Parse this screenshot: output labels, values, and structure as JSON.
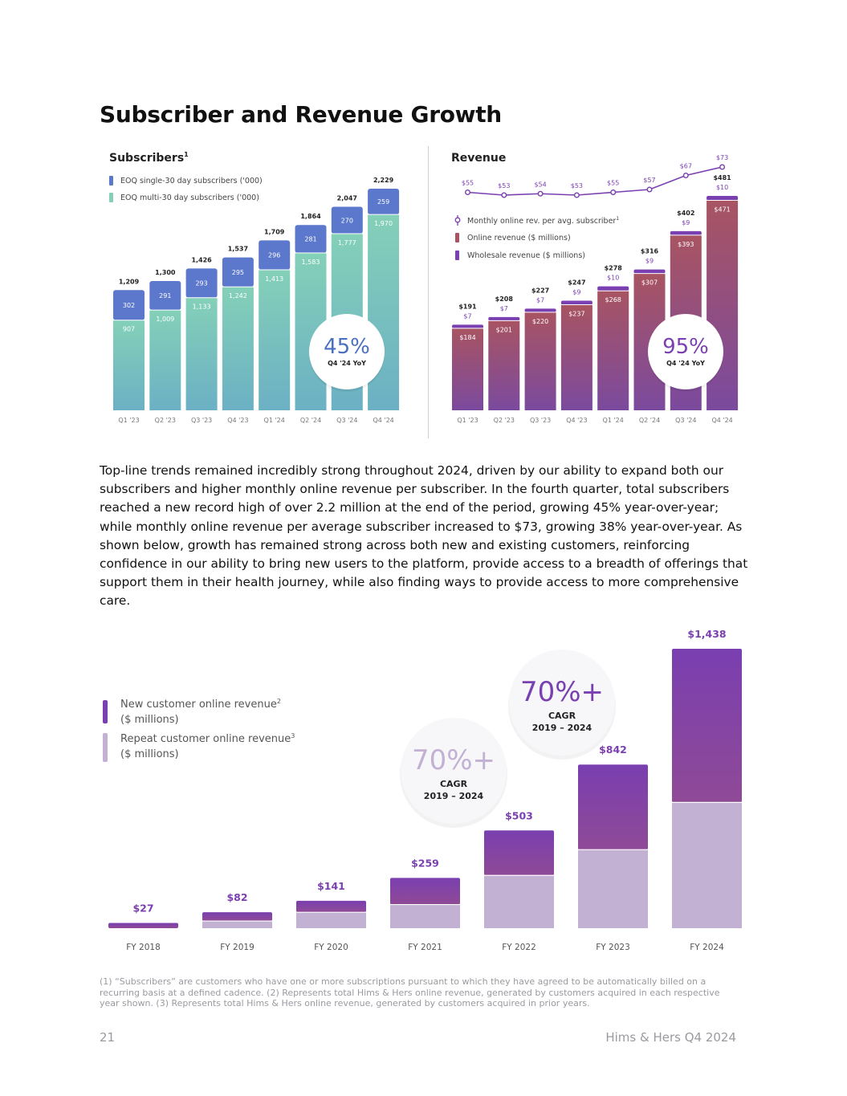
{
  "page": {
    "title": "Subscriber and Revenue Growth",
    "body": "Top-line trends remained incredibly strong throughout 2024, driven by our ability to expand both our subscribers and higher monthly online revenue per subscriber. In the fourth quarter, total subscribers reached a new record high of over 2.2 million at the end of the period, growing 45% year-over-year; while monthly online revenue per average subscriber increased to $73, growing 38% year-over-year. As shown below, growth has remained strong across both new and existing customers, reinforcing confidence in our ability to bring new users to the platform, provide access to a breadth of offerings that support them in their health journey, while also finding ways to provide access to more comprehensive care.",
    "footnote": "(1) “Subscribers” are customers who have one or more subscriptions pursuant to which they have agreed to be automatically billed on a recurring basis at a defined cadence. (2) Represents total Hims & Hers online revenue, generated by customers acquired in each respective year shown. (3) Represents total Hims & Hers online revenue, generated by customers acquired in prior years.",
    "page_number": "21",
    "footer_brand": "Hims & Hers Q4 2024"
  },
  "colors": {
    "single_sub": "#5b78cc",
    "multi_sub_top": "#84d0b8",
    "multi_sub_bottom": "#6bb0c4",
    "online_top": "#a85462",
    "online_bottom": "#7b4a9e",
    "wholesale": "#7a3fb0",
    "line": "#7a3fb0",
    "new_customer_top": "#7a3fb0",
    "new_customer_bottom": "#8f4a96",
    "repeat_customer": "#c3b1d4",
    "faded_purple": "#c3b1d4"
  },
  "chart_data": [
    {
      "type": "bar",
      "title": "Subscribers",
      "title_superscript": "1",
      "stacked": true,
      "categories": [
        "Q1 '23",
        "Q2 '23",
        "Q3 '23",
        "Q4 '23",
        "Q1 '24",
        "Q2 '24",
        "Q3 '24",
        "Q4 '24"
      ],
      "series": [
        {
          "name": "EOQ single-30 day subscribers ('000)",
          "values": [
            302,
            291,
            293,
            295,
            296,
            281,
            270,
            259
          ]
        },
        {
          "name": "EOQ multi-30 day subscribers  ('000)",
          "values": [
            907,
            1009,
            1133,
            1242,
            1413,
            1583,
            1777,
            1970
          ]
        }
      ],
      "totals": [
        1209,
        1300,
        1426,
        1537,
        1709,
        1864,
        2047,
        2229
      ],
      "total_labels": [
        "1,209",
        "1,300",
        "1,426",
        "1,537",
        "1,709",
        "1,864",
        "2,047",
        "2,229"
      ],
      "single_labels": [
        "302",
        "291",
        "293",
        "295",
        "296",
        "281",
        "270",
        "259"
      ],
      "multi_labels": [
        "907",
        "1,009",
        "1,133",
        "1,242",
        "1,413",
        "1,583",
        "1,777",
        "1,970"
      ],
      "ylim": [
        0,
        2229
      ],
      "legend_position": "top-left",
      "badge": {
        "value": "45%",
        "caption": "Q4 '24 YoY"
      }
    },
    {
      "type": "bar",
      "title": "Revenue",
      "stacked": true,
      "categories": [
        "Q1 '23",
        "Q2 '23",
        "Q3 '23",
        "Q4 '23",
        "Q1 '24",
        "Q2 '24",
        "Q3 '24",
        "Q4 '24"
      ],
      "series": [
        {
          "name": "Online revenue ($ millions)",
          "values": [
            184,
            201,
            220,
            237,
            268,
            307,
            393,
            471
          ]
        },
        {
          "name": "Wholesale revenue ($ millions)",
          "values": [
            7,
            7,
            7,
            9,
            10,
            9,
            9,
            10
          ]
        }
      ],
      "totals": [
        191,
        208,
        227,
        247,
        278,
        316,
        402,
        481
      ],
      "total_labels": [
        "$191",
        "$208",
        "$227",
        "$247",
        "$278",
        "$316",
        "$402",
        "$481"
      ],
      "online_labels": [
        "$184",
        "$201",
        "$220",
        "$237",
        "$268",
        "$307",
        "$393",
        "$471"
      ],
      "wholesale_labels": [
        "$7",
        "$7",
        "$7",
        "$9",
        "$10",
        "$9",
        "$9",
        "$10"
      ],
      "line_series": {
        "name": "Monthly online rev. per avg. subscriber",
        "name_superscript": "1",
        "values": [
          55,
          53,
          54,
          53,
          55,
          57,
          67,
          73
        ],
        "labels": [
          "$55",
          "$53",
          "$54",
          "$53",
          "$55",
          "$57",
          "$67",
          "$73"
        ]
      },
      "ylim": [
        0,
        481
      ],
      "legend_position": "middle-left",
      "badge": {
        "value": "95%",
        "caption": "Q4 '24 YoY"
      }
    },
    {
      "type": "bar",
      "stacked": true,
      "categories": [
        "FY 2018",
        "FY 2019",
        "FY 2020",
        "FY 2021",
        "FY 2022",
        "FY 2023",
        "FY 2024"
      ],
      "totals": [
        27,
        82,
        141,
        259,
        503,
        842,
        1438
      ],
      "total_labels": [
        "$27",
        "$82",
        "$141",
        "$259",
        "$503",
        "$842",
        "$1,438"
      ],
      "repeat_share": [
        0.0,
        0.45,
        0.58,
        0.47,
        0.54,
        0.48,
        0.45
      ],
      "series": [
        {
          "name": "New customer online revenue",
          "superscript": "2",
          "unit": "($ millions)"
        },
        {
          "name": "Repeat customer online revenue",
          "superscript": "3",
          "unit": "($ millions)"
        }
      ],
      "ylim": [
        0,
        1438
      ],
      "legend_position": "left",
      "callouts": [
        {
          "value": "70%+",
          "label": "CAGR",
          "range": "2019 – 2024",
          "tone": "faded"
        },
        {
          "value": "70%+",
          "label": "CAGR",
          "range": "2019 – 2024",
          "tone": "strong"
        }
      ]
    }
  ]
}
